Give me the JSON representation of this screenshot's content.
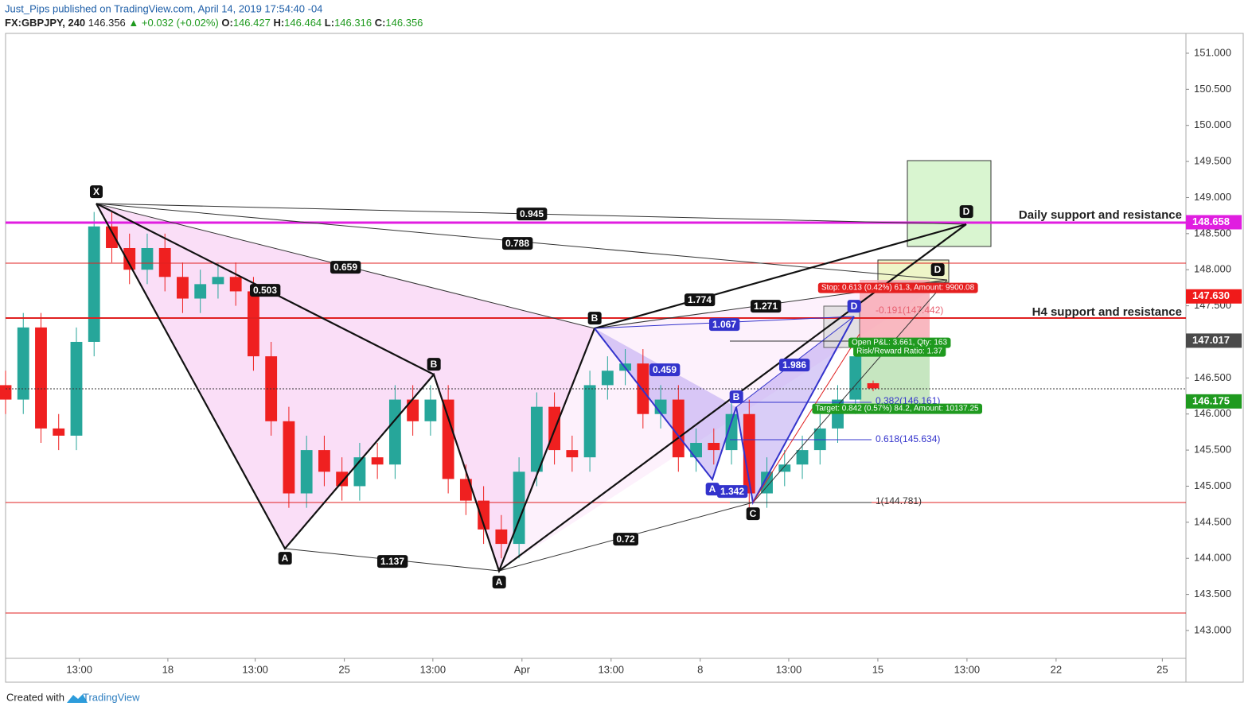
{
  "header": {
    "publisher": "Just_Pips published on TradingView.com, April 14, 2019 17:54:40 -04",
    "symbol": "FX:GBPJPY, 240",
    "last": "146.356",
    "change": "▲ +0.032 (+0.02%)",
    "ohlc": [
      {
        "label": "O:",
        "value": "146.427"
      },
      {
        "label": "H:",
        "value": "146.464"
      },
      {
        "label": "L:",
        "value": "146.316"
      },
      {
        "label": "C:",
        "value": "146.356"
      }
    ]
  },
  "chart_data": {
    "type": "candlestick",
    "x": [
      0,
      3,
      6,
      9,
      12,
      15,
      18,
      21,
      24,
      27,
      30,
      33,
      36,
      39,
      42,
      45,
      48,
      51,
      54,
      57,
      60,
      63,
      66,
      69,
      72,
      75,
      78,
      81,
      84,
      87,
      90,
      93,
      96,
      99,
      102,
      105,
      108,
      111,
      114,
      117,
      120,
      123,
      126,
      129,
      132,
      135,
      138,
      141,
      144,
      147
    ],
    "open": [
      146.4,
      146.2,
      147.2,
      145.8,
      145.7,
      147.0,
      148.6,
      148.3,
      148.0,
      148.3,
      147.9,
      147.6,
      147.8,
      147.9,
      147.7,
      146.8,
      145.9,
      144.9,
      145.5,
      145.2,
      145.0,
      145.4,
      145.3,
      146.2,
      145.9,
      146.2,
      145.1,
      144.8,
      144.4,
      144.2,
      145.2,
      146.1,
      145.5,
      145.4,
      146.4,
      146.6,
      146.7,
      146.0,
      146.2,
      145.4,
      145.6,
      145.5,
      146.0,
      144.9,
      145.2,
      145.3,
      145.5,
      145.8,
      146.2,
      146.427
    ],
    "high": [
      146.6,
      147.4,
      147.4,
      146.0,
      147.2,
      148.8,
      148.8,
      148.5,
      148.5,
      148.5,
      148.1,
      148.0,
      148.1,
      148.1,
      147.9,
      147.0,
      146.1,
      145.7,
      145.7,
      145.4,
      145.6,
      145.6,
      146.4,
      146.4,
      146.4,
      146.4,
      145.3,
      145.0,
      144.6,
      145.4,
      146.3,
      146.3,
      145.7,
      146.6,
      146.8,
      146.9,
      146.9,
      146.4,
      146.4,
      145.8,
      145.8,
      146.2,
      146.2,
      145.4,
      145.5,
      145.7,
      146.0,
      146.4,
      147.0,
      146.464
    ],
    "low": [
      146.0,
      146.0,
      145.6,
      145.5,
      145.5,
      146.8,
      148.1,
      147.8,
      147.8,
      147.7,
      147.4,
      147.4,
      147.6,
      147.5,
      146.6,
      145.7,
      144.7,
      144.7,
      145.0,
      144.8,
      144.8,
      145.1,
      145.1,
      145.7,
      145.7,
      144.9,
      144.6,
      144.2,
      144.0,
      144.0,
      145.0,
      145.3,
      145.2,
      145.2,
      146.2,
      146.4,
      145.8,
      145.8,
      145.2,
      145.2,
      145.3,
      145.3,
      144.7,
      144.7,
      145.0,
      145.1,
      145.3,
      145.6,
      146.0,
      146.316
    ],
    "close": [
      146.2,
      147.2,
      145.8,
      145.7,
      147.0,
      148.6,
      148.3,
      148.0,
      148.3,
      147.9,
      147.6,
      147.8,
      147.9,
      147.7,
      146.8,
      145.9,
      144.9,
      145.5,
      145.2,
      145.0,
      145.4,
      145.3,
      146.2,
      145.9,
      146.2,
      145.1,
      144.8,
      144.4,
      144.2,
      145.2,
      146.1,
      145.5,
      145.4,
      146.4,
      146.6,
      146.7,
      146.0,
      146.2,
      145.4,
      145.6,
      145.5,
      146.0,
      144.9,
      145.2,
      145.3,
      145.5,
      145.8,
      146.2,
      146.8,
      146.356
    ],
    "up_color": "#26a69a",
    "down_color": "#ef2020",
    "xlim": [
      0,
      200
    ],
    "ylim": [
      142.614,
      151.275
    ],
    "xticks": [
      {
        "value": 12.5,
        "label": "13:00"
      },
      {
        "value": 27.5,
        "label": "18"
      },
      {
        "value": 42.3,
        "label": "13:00"
      },
      {
        "value": 57.4,
        "label": "25"
      },
      {
        "value": 72.4,
        "label": "13:00"
      },
      {
        "value": 87.5,
        "label": "Apr"
      },
      {
        "value": 102.6,
        "label": "13:00"
      },
      {
        "value": 117.7,
        "label": "8"
      },
      {
        "value": 132.7,
        "label": "13:00"
      },
      {
        "value": 147.8,
        "label": "15"
      },
      {
        "value": 162.9,
        "label": "13:00"
      },
      {
        "value": 178,
        "label": "22"
      },
      {
        "value": 196,
        "label": "25"
      }
    ],
    "yticks": [
      {
        "value": 143,
        "label": "143.000"
      },
      {
        "value": 143.5,
        "label": "143.500"
      },
      {
        "value": 144,
        "label": "144.000"
      },
      {
        "value": 144.5,
        "label": "144.500"
      },
      {
        "value": 145,
        "label": "145.000"
      },
      {
        "value": 145.5,
        "label": "145.500"
      },
      {
        "value": 146,
        "label": "146.000"
      },
      {
        "value": 146.5,
        "label": "146.500"
      },
      {
        "value": 147,
        "label": "147.000"
      },
      {
        "value": 147.5,
        "label": "147.500"
      },
      {
        "value": 148,
        "label": "148.000"
      },
      {
        "value": 148.5,
        "label": "148.500"
      },
      {
        "value": 149,
        "label": "149.000"
      },
      {
        "value": 149.5,
        "label": "149.500"
      },
      {
        "value": 150,
        "label": "150.000"
      },
      {
        "value": 150.5,
        "label": "150.500"
      },
      {
        "value": 151,
        "label": "151.000"
      }
    ],
    "price_tags": [
      {
        "value": 148.658,
        "label": "148.658",
        "color": "#e01ee0"
      },
      {
        "value": 147.63,
        "label": "147.630",
        "color": "#f01a1a"
      },
      {
        "value": 147.017,
        "label": "147.017",
        "color": "#4a4a4a"
      },
      {
        "value": 146.175,
        "label": "146.175",
        "color": "#1f9a1f"
      }
    ],
    "annotations": {
      "points": [
        "X",
        "A",
        "B",
        "A",
        "B",
        "C",
        "D",
        "D",
        "A",
        "B",
        "D"
      ],
      "ratios": [
        "0.945",
        "0.788",
        "0.659",
        "0.503",
        "1.774",
        "1.271",
        "1.137",
        "0.72"
      ],
      "blue_ratios": [
        "1.067",
        "0.459",
        "1.986",
        "1.342"
      ],
      "levels": [
        "Daily support and resistance",
        "H4 support and resistance"
      ],
      "fib": [
        "-0.191(147.442)",
        "0.382(146.161)",
        "0.618(145.634)",
        "1(144.781)"
      ],
      "position": [
        "Stop: 0.613 (0.42%) 61.3, Amount: 9900.08",
        "Open P&L: 3.661, Qty: 163",
        "Risk/Reward Ratio: 1.37",
        "Target: 0.842 (0.57%) 84.2, Amount: 10137.25"
      ]
    }
  },
  "footer": {
    "created": "Created with",
    "brand": "TradingView"
  }
}
